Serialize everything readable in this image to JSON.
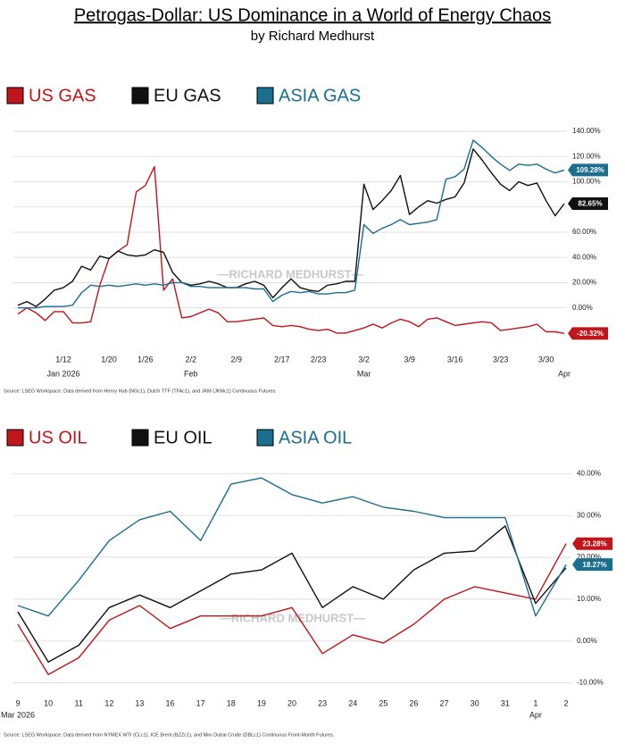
{
  "header": {
    "title": "Petrogas-Dollar: US Dominance in a World of Energy Chaos",
    "subtitle": "by Richard Medhurst"
  },
  "chart_data": [
    {
      "type": "line",
      "grid": true,
      "legend": "top",
      "watermark": "—RICHARD MEDHURST—",
      "source": "Source: LSEG Workspace. Data derived from Henry Hub (NGc1), Dutch TTF (TFAc1), and JKM (JKMc1) Continuous Futures.",
      "categories": [
        null,
        null,
        null,
        null,
        null,
        "1/12",
        null,
        null,
        null,
        null,
        "1/20",
        null,
        null,
        null,
        "1/26",
        null,
        null,
        null,
        null,
        "2/2",
        null,
        null,
        null,
        null,
        "2/9",
        null,
        null,
        null,
        null,
        "2/17",
        null,
        null,
        null,
        "2/23",
        null,
        null,
        null,
        null,
        "3/2",
        null,
        null,
        null,
        null,
        "3/9",
        null,
        null,
        null,
        null,
        "3/16",
        null,
        null,
        null,
        null,
        "3/23",
        null,
        null,
        null,
        null,
        "3/30",
        null,
        null
      ],
      "x_period_labels": [
        null,
        null,
        null,
        null,
        null,
        "Jan 2026",
        null,
        null,
        null,
        null,
        null,
        null,
        null,
        null,
        null,
        null,
        null,
        null,
        null,
        "Feb",
        null,
        null,
        null,
        null,
        null,
        null,
        null,
        null,
        null,
        null,
        null,
        null,
        null,
        null,
        null,
        null,
        null,
        null,
        "Mar",
        null,
        null,
        null,
        null,
        null,
        null,
        null,
        null,
        null,
        null,
        null,
        null,
        null,
        null,
        null,
        null,
        null,
        null,
        null,
        null,
        null,
        "Apr"
      ],
      "ylim": [
        -30,
        145
      ],
      "yticks": [
        {
          "value": 0,
          "label": "0.00%"
        },
        {
          "value": 20,
          "label": "20.00%"
        },
        {
          "value": 40,
          "label": "40.00%"
        },
        {
          "value": 60,
          "label": "60.00%"
        },
        {
          "value": 80,
          "label": "80.00%"
        },
        {
          "value": 100,
          "label": "100.00%"
        },
        {
          "value": 120,
          "label": "120.00%"
        },
        {
          "value": 140,
          "label": "140.00%"
        }
      ],
      "series": [
        {
          "name": "US GAS",
          "color": "#c0151b",
          "end_label": "-20.32%",
          "values": [
            -5,
            0,
            -4,
            -10,
            -3,
            -3,
            -12,
            -12,
            -11,
            18,
            39,
            45,
            50,
            92,
            97,
            112,
            14,
            23,
            -8,
            -7,
            -4,
            -1,
            -4,
            -11,
            -11,
            -10,
            -9,
            -8,
            -14,
            -15,
            -14,
            -15,
            -17,
            -18,
            -17,
            -20,
            -20,
            -18,
            -16,
            -13,
            -16,
            -12,
            -9,
            -11,
            -15,
            -9,
            -8,
            -11,
            -14,
            -13,
            -12,
            -11,
            -12,
            -18,
            -17,
            -16,
            -15,
            -13,
            -19,
            -19,
            -20.32
          ]
        },
        {
          "name": "EU GAS",
          "color": "#111111",
          "end_label": "82.65%",
          "values": [
            2,
            5,
            1,
            7,
            14,
            16,
            21,
            33,
            30,
            41,
            39,
            45,
            42,
            41,
            42,
            46,
            44,
            28,
            20,
            18,
            19,
            21,
            19,
            16,
            16,
            19,
            21,
            18,
            8,
            16,
            23,
            16,
            14,
            13,
            18,
            19,
            21,
            21,
            98,
            78,
            85,
            93,
            105,
            74,
            80,
            85,
            83,
            86,
            88,
            99,
            126,
            117,
            107,
            98,
            93,
            100,
            97,
            99,
            85,
            73,
            82.65
          ]
        },
        {
          "name": "ASIA GAS",
          "color": "#1a6e8e",
          "end_label": "109.28%",
          "values": [
            0,
            0,
            0,
            1,
            1,
            1,
            2,
            12,
            18,
            17,
            18,
            17,
            18,
            19,
            18,
            19,
            18,
            20,
            20,
            17,
            17,
            16,
            16,
            16,
            16,
            16,
            15,
            15,
            5,
            10,
            13,
            12,
            13,
            11,
            11,
            12,
            12,
            14,
            66,
            59,
            63,
            66,
            70,
            66,
            67,
            68,
            70,
            102,
            104,
            110,
            133,
            127,
            120,
            114,
            109,
            114,
            113,
            114,
            110,
            107,
            109.28
          ]
        }
      ]
    },
    {
      "type": "line",
      "grid": true,
      "legend": "top",
      "watermark": "—RICHARD MEDHURST—",
      "source": "Source: LSEG Workspace. Data derived from NYMEX WTI (CLc1), ICE Brent (BZZc1), and Mini Dubai Crude (DBLc1) Continuous Front-Month Futures.",
      "categories": [
        "9",
        "10",
        "11",
        "12",
        "13",
        "16",
        "17",
        "18",
        "19",
        "20",
        "23",
        "24",
        "25",
        "26",
        "27",
        "30",
        "31",
        "1",
        "2"
      ],
      "x_period_labels": [
        "Mar 2026",
        null,
        null,
        null,
        null,
        null,
        null,
        null,
        null,
        null,
        null,
        null,
        null,
        null,
        null,
        null,
        null,
        "Apr",
        null
      ],
      "ylim": [
        -12,
        42
      ],
      "yticks": [
        {
          "value": -10,
          "label": "-10.00%"
        },
        {
          "value": 0,
          "label": "0.00%"
        },
        {
          "value": 10,
          "label": "10.00%"
        },
        {
          "value": 20,
          "label": "20.00%"
        },
        {
          "value": 30,
          "label": "30.00%"
        },
        {
          "value": 40,
          "label": "40.00%"
        }
      ],
      "series": [
        {
          "name": "US OIL",
          "color": "#c0151b",
          "end_label": "23.28%",
          "values": [
            4,
            -8,
            -4,
            5,
            8.5,
            3,
            6,
            6,
            6,
            8,
            -3,
            1.5,
            -0.5,
            4,
            10,
            13,
            11.5,
            10,
            23.28
          ]
        },
        {
          "name": "EU OIL",
          "color": "#111111",
          "values": [
            7,
            -5,
            -1,
            8,
            11,
            8,
            12,
            16,
            17,
            21,
            8,
            13,
            10,
            17,
            21,
            21.5,
            27.5,
            9,
            17.5
          ]
        },
        {
          "name": "ASIA OIL",
          "color": "#1a6e8e",
          "end_label": "18.27%",
          "values": [
            8.5,
            6,
            14.5,
            24,
            29,
            31,
            24,
            37.5,
            39,
            35,
            33,
            34.5,
            32,
            31,
            29.5,
            29.5,
            29.5,
            6,
            18.27
          ]
        }
      ]
    }
  ]
}
